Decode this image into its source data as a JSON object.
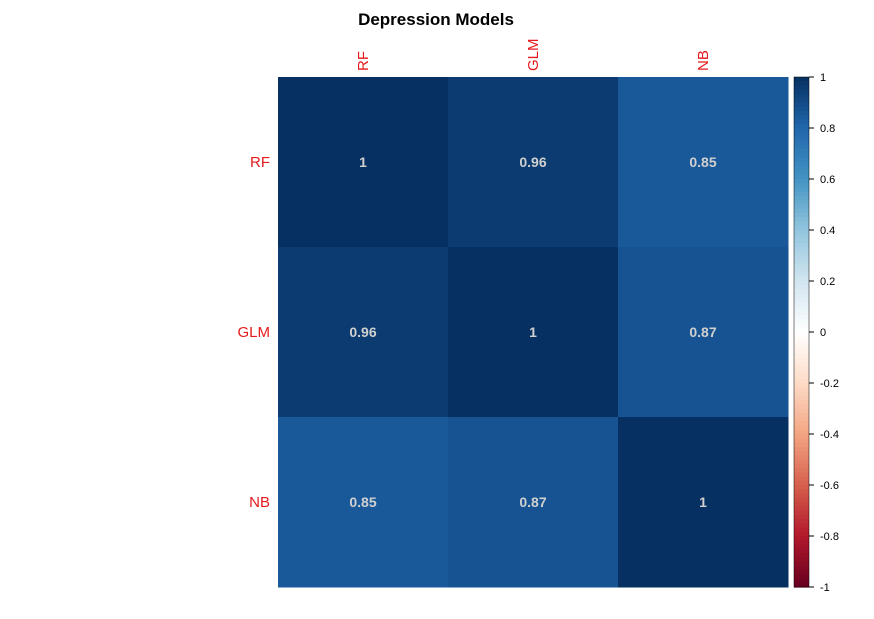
{
  "chart_data": {
    "type": "heatmap",
    "title": "Depression Models",
    "row_labels": [
      "RF",
      "GLM",
      "NB"
    ],
    "col_labels": [
      "RF",
      "GLM",
      "NB"
    ],
    "values": [
      [
        1,
        0.96,
        0.85
      ],
      [
        0.96,
        1,
        0.87
      ],
      [
        0.85,
        0.87,
        1
      ]
    ],
    "cell_labels": [
      [
        "1",
        "0.96",
        "0.85"
      ],
      [
        "0.96",
        "1",
        "0.87"
      ],
      [
        "0.85",
        "0.87",
        "1"
      ]
    ],
    "value_range": [
      -1,
      1
    ],
    "legend": {
      "placement": "right",
      "ticks": [
        "1",
        "0.8",
        "0.6",
        "0.4",
        "0.2",
        "0",
        "-0.2",
        "-0.4",
        "-0.6",
        "-0.8",
        "-1"
      ],
      "tick_values": [
        1,
        0.8,
        0.6,
        0.4,
        0.2,
        0,
        -0.2,
        -0.4,
        -0.6,
        -0.8,
        -1
      ]
    },
    "colors": {
      "label_text": "#e41a1c",
      "cell_text": "#d0d0d0",
      "palette": [
        "#67001F",
        "#B2182B",
        "#D6604D",
        "#F4A582",
        "#FDDBC7",
        "#FFFFFF",
        "#D1E5F0",
        "#92C5DE",
        "#4393C3",
        "#2166AC",
        "#053061"
      ]
    },
    "grid": false
  }
}
